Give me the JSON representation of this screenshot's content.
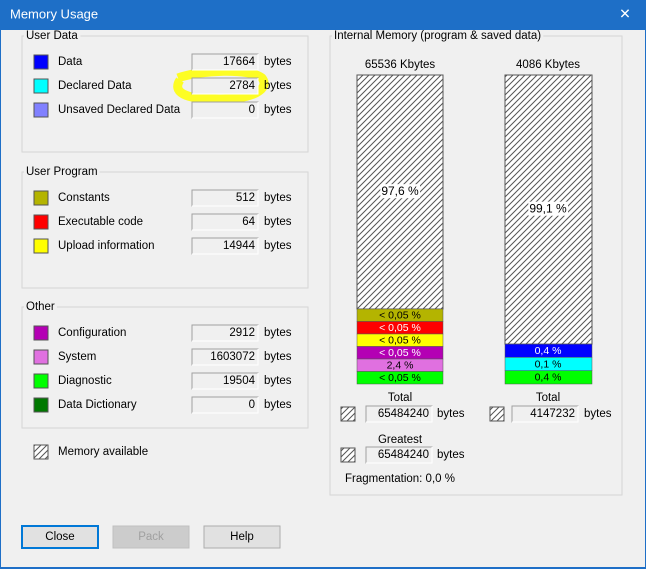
{
  "window": {
    "title": "Memory Usage",
    "close": "✕"
  },
  "groups": [
    {
      "title": "User Data",
      "items": [
        {
          "label": "Data",
          "color": "#0000ff",
          "value": "17664",
          "unit": "bytes"
        },
        {
          "label": "Declared Data",
          "color": "#00ffff",
          "value": "2784",
          "unit": "bytes"
        },
        {
          "label": "Unsaved Declared Data",
          "color": "#8080ff",
          "value": "0",
          "unit": "bytes"
        }
      ]
    },
    {
      "title": "User Program",
      "items": [
        {
          "label": "Constants",
          "color": "#b4b400",
          "value": "512",
          "unit": "bytes"
        },
        {
          "label": "Executable code",
          "color": "#ff0000",
          "value": "64",
          "unit": "bytes"
        },
        {
          "label": "Upload information",
          "color": "#ffff00",
          "value": "14944",
          "unit": "bytes"
        }
      ]
    },
    {
      "title": "Other",
      "items": [
        {
          "label": "Configuration",
          "color": "#b400b4",
          "value": "2912",
          "unit": "bytes"
        },
        {
          "label": "System",
          "color": "#e070e0",
          "value": "1603072",
          "unit": "bytes"
        },
        {
          "label": "Diagnostic",
          "color": "#00ff00",
          "value": "19504",
          "unit": "bytes"
        },
        {
          "label": "Data Dictionary",
          "color": "#007800",
          "value": "0",
          "unit": "bytes"
        }
      ]
    }
  ],
  "memory_available": "Memory available",
  "internal_memory": {
    "title": "Internal Memory (program & saved data)",
    "bars": [
      {
        "capacity": "65536 Kbytes",
        "free_label": "97,6 %",
        "segments": [
          {
            "label": "< 0,05 %",
            "color": "#b4b400"
          },
          {
            "label": "< 0,05 %",
            "color": "#ff0000"
          },
          {
            "label": "< 0,05 %",
            "color": "#ffff00"
          },
          {
            "label": "< 0,05 %",
            "color": "#b400b4"
          },
          {
            "label": "2,4 %",
            "color": "#e070e0"
          },
          {
            "label": "< 0,05 %",
            "color": "#00ff00"
          }
        ],
        "total_label": "Total",
        "total": "65484240",
        "unit": "bytes"
      },
      {
        "capacity": "4086 Kbytes",
        "free_label": "99,1 %",
        "segments": [
          {
            "label": "0,4 %",
            "color": "#0000ff"
          },
          {
            "label": "0,1 %",
            "color": "#00ffff"
          },
          {
            "label": "0,4 %",
            "color": "#00ff00"
          }
        ],
        "total_label": "Total",
        "total": "4147232",
        "unit": "bytes"
      }
    ],
    "greatest_label": "Greatest",
    "greatest": "65484240",
    "greatest_unit": "bytes",
    "fragmentation": "Fragmentation: 0,0 %"
  },
  "buttons": [
    {
      "label": "Close"
    },
    {
      "label": "Pack"
    },
    {
      "label": "Help"
    }
  ]
}
